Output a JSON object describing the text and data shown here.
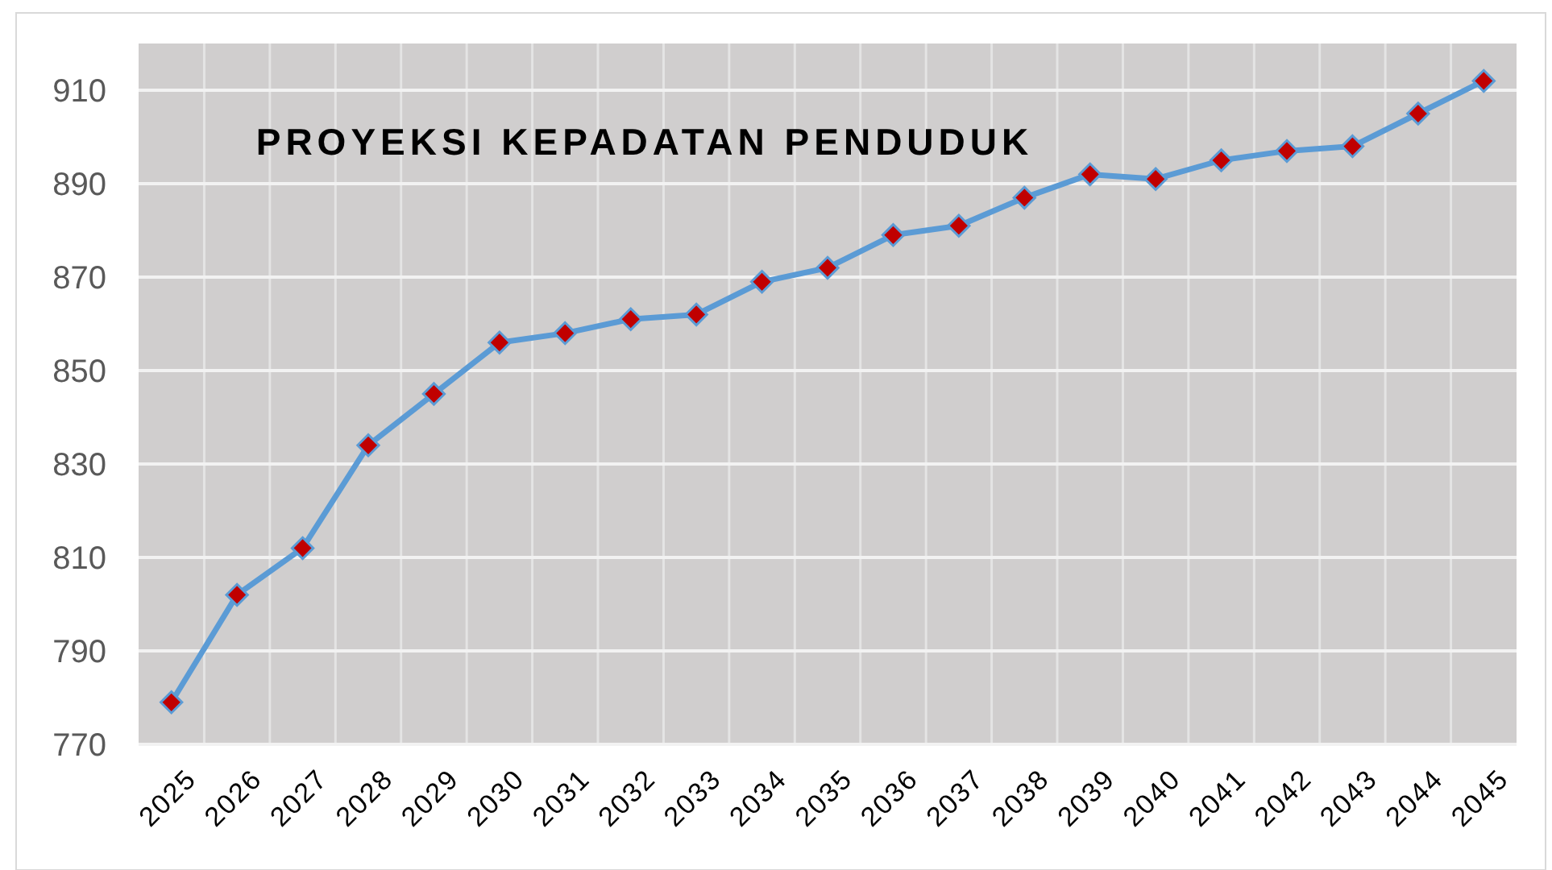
{
  "chart_data": {
    "type": "line",
    "title": "PROYEKSI KEPADATAN PENDUDUK",
    "categories": [
      "2025",
      "2026",
      "2027",
      "2028",
      "2029",
      "2030",
      "2031",
      "2032",
      "2033",
      "2034",
      "2035",
      "2036",
      "2037",
      "2038",
      "2039",
      "2040",
      "2041",
      "2042",
      "2043",
      "2044",
      "2045"
    ],
    "series": [
      {
        "color": "#5b9bd5",
        "values": [
          779,
          802,
          812,
          834,
          845,
          856,
          858,
          861,
          862,
          869,
          872,
          879,
          881,
          887,
          892,
          891,
          895,
          897,
          898,
          905,
          912
        ]
      }
    ],
    "marker": "diamond",
    "ylim": [
      770,
      920
    ],
    "yticks": [
      770,
      790,
      810,
      830,
      850,
      870,
      890,
      910
    ],
    "grid": true
  }
}
